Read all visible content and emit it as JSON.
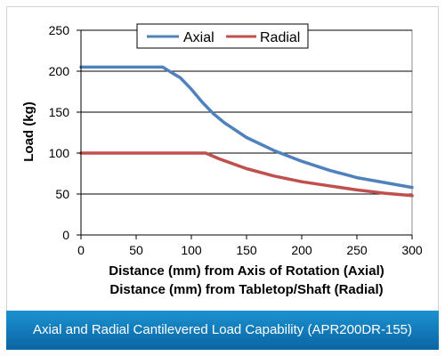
{
  "caption": "Axial and Radial Cantilevered Load Capability (APR200DR-155)",
  "colors": {
    "axial": "#4f81bd",
    "radial": "#c0504d",
    "caption_bg": "#0a64a4",
    "grid": "#000000"
  },
  "chart_data": {
    "type": "line",
    "title": "",
    "xlabel": [
      "Distance (mm) from Axis of Rotation (Axial)",
      "Distance (mm) from Tabletop/Shaft (Radial)"
    ],
    "ylabel": "Load (kg)",
    "xlim": [
      0,
      300
    ],
    "ylim": [
      0,
      250
    ],
    "xticks": [
      0,
      50,
      100,
      150,
      200,
      250,
      300
    ],
    "yticks": [
      0,
      50,
      100,
      150,
      200,
      250
    ],
    "grid": "horizontal",
    "legend": "top-center",
    "series": [
      {
        "name": "Axial",
        "color": "#4f81bd",
        "points": [
          [
            0,
            205
          ],
          [
            50,
            205
          ],
          [
            74,
            205
          ],
          [
            80,
            200
          ],
          [
            90,
            192
          ],
          [
            100,
            178
          ],
          [
            110,
            162
          ],
          [
            120,
            148
          ],
          [
            130,
            137
          ],
          [
            150,
            119
          ],
          [
            175,
            103
          ],
          [
            200,
            90
          ],
          [
            225,
            79
          ],
          [
            250,
            70
          ],
          [
            275,
            64
          ],
          [
            300,
            58
          ]
        ]
      },
      {
        "name": "Radial",
        "color": "#c0504d",
        "points": [
          [
            0,
            100
          ],
          [
            50,
            100
          ],
          [
            100,
            100
          ],
          [
            113,
            100
          ],
          [
            125,
            93
          ],
          [
            150,
            81
          ],
          [
            175,
            72
          ],
          [
            200,
            65
          ],
          [
            225,
            60
          ],
          [
            250,
            55
          ],
          [
            275,
            51
          ],
          [
            300,
            48
          ]
        ]
      }
    ]
  }
}
